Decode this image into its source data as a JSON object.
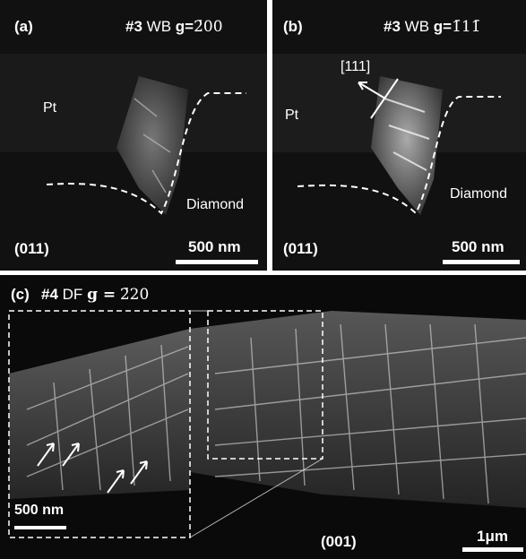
{
  "panel_a": {
    "letter": "(a)",
    "sample": "#3",
    "mode": "WB",
    "g_label": "g=",
    "g_value": "2̄00",
    "label_pt": "Pt",
    "label_diamond": "Diamond",
    "orientation": "(011)",
    "scale": "500 nm"
  },
  "panel_b": {
    "letter": "(b)",
    "sample": "#3",
    "mode": "WB",
    "g_label": "g=",
    "g_value": "1̄11̄",
    "direction": "[111]",
    "label_pt": "Pt",
    "label_diamond": "Diamond",
    "orientation": "(011)",
    "scale": "500 nm"
  },
  "panel_c": {
    "letter": "(c)",
    "sample": "#4",
    "mode": "DF",
    "g_label": "g =",
    "g_value": "2̄20",
    "inset_scale": "500 nm",
    "orientation": "(001)",
    "scale": "1μm"
  },
  "colors": {
    "background": "#0c0c0c",
    "text": "#ffffff",
    "page": "#ffffff"
  }
}
